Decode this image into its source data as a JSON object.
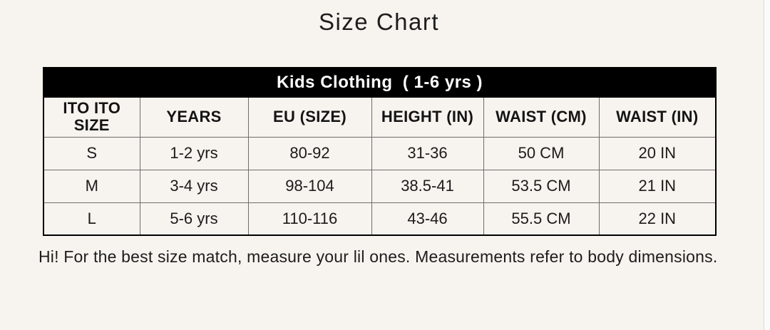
{
  "page": {
    "title": "Size Chart",
    "footer": "Hi! For the best size match, measure your lil ones. Measurements refer to body dimensions.",
    "background_color": "#f7f3ee"
  },
  "table": {
    "banner": "Kids Clothing  ( 1-6 yrs )",
    "banner_bg_color": "#000000",
    "banner_text_color": "#ffffff",
    "grid_line_color": "#6e6e6e",
    "columns": [
      "ITO ITO SIZE",
      "YEARS",
      "EU (SIZE)",
      "HEIGHT (IN)",
      "WAIST (CM)",
      "WAIST (IN)"
    ],
    "rows": [
      [
        "S",
        "1-2 yrs",
        "80-92",
        "31-36",
        "50 CM",
        "20 IN"
      ],
      [
        "M",
        "3-4 yrs",
        "98-104",
        "38.5-41",
        "53.5 CM",
        "21 IN"
      ],
      [
        "L",
        "5-6 yrs",
        "110-116",
        "43-46",
        "55.5 CM",
        "22 IN"
      ]
    ]
  }
}
